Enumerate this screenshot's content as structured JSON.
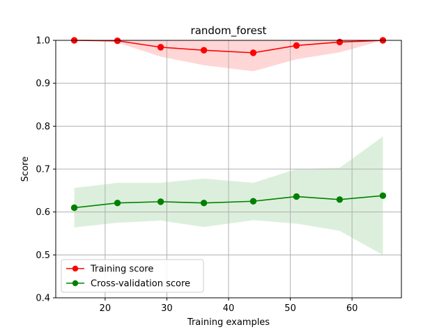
{
  "chart_data": {
    "type": "line",
    "title": "random_forest",
    "xlabel": "Training examples",
    "ylabel": "Score",
    "xlim": [
      12,
      68
    ],
    "ylim": [
      0.4,
      1.0
    ],
    "xticks": [
      20,
      30,
      40,
      50,
      60
    ],
    "yticks": [
      0.4,
      0.5,
      0.6,
      0.7,
      0.8,
      0.9,
      1.0
    ],
    "grid": true,
    "legend_position": "lower-left",
    "x": [
      15,
      22,
      29,
      36,
      44,
      51,
      58,
      65
    ],
    "series": [
      {
        "name": "Training score",
        "color": "#ff0000",
        "band_color": "#ffd6d6",
        "values": [
          1.0,
          0.999,
          0.984,
          0.977,
          0.971,
          0.988,
          0.996,
          1.0
        ],
        "lower": [
          1.0,
          0.995,
          0.962,
          0.942,
          0.928,
          0.956,
          0.972,
          1.0
        ],
        "upper": [
          1.0,
          1.0,
          1.0,
          1.0,
          1.0,
          1.0,
          1.0,
          1.0
        ]
      },
      {
        "name": "Cross-validation score",
        "color": "#008000",
        "band_color": "#dcefdc",
        "values": [
          0.61,
          0.621,
          0.624,
          0.621,
          0.625,
          0.636,
          0.629,
          0.638
        ],
        "lower": [
          0.564,
          0.575,
          0.58,
          0.565,
          0.581,
          0.573,
          0.556,
          0.5
        ],
        "upper": [
          0.656,
          0.668,
          0.668,
          0.678,
          0.668,
          0.7,
          0.703,
          0.776
        ]
      }
    ]
  }
}
